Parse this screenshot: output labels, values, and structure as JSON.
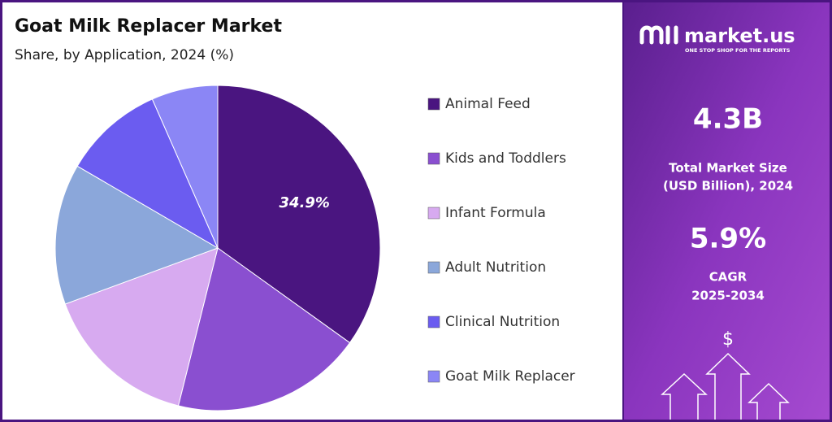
{
  "chart_data": {
    "type": "pie",
    "title": "Goat Milk Replacer Market",
    "subtitle": "Share, by Application, 2024 (%)",
    "categories": [
      "Animal Feed",
      "Kids and Toddlers",
      "Infant Formula",
      "Adult Nutrition",
      "Clinical Nutrition",
      "Goat Milk Replacer"
    ],
    "values": [
      34.9,
      19,
      15.5,
      14,
      10,
      6.6
    ],
    "value_labels": [
      "34.9%",
      null,
      null,
      null,
      null,
      null
    ],
    "colors": [
      "#4a1580",
      "#8a4fd0",
      "#d7aaf0",
      "#8ba7da",
      "#6b5cf0",
      "#8b86f5"
    ],
    "legend": "right"
  },
  "panel": {
    "brand": "market.us",
    "tagline": "ONE STOP SHOP FOR THE REPORTS",
    "market_size": "4.3B",
    "market_size_label_1": "Total Market Size",
    "market_size_label_2": "(USD Billion), 2024",
    "cagr": "5.9%",
    "cagr_label_1": "CAGR",
    "cagr_label_2": "2025-2034",
    "currency_icon": "$"
  }
}
